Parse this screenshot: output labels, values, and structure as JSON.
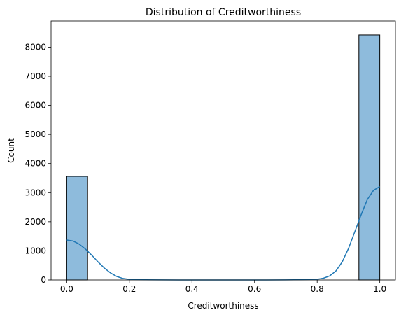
{
  "chart_data": {
    "type": "bar",
    "title": "Distribution of Creditworthiness",
    "xlabel": "Creditworthiness",
    "ylabel": "Count",
    "xlim": [
      -0.05,
      1.05
    ],
    "ylim": [
      0,
      8900
    ],
    "xticks": [
      0.0,
      0.2,
      0.4,
      0.6,
      0.8,
      1.0
    ],
    "xtick_labels": [
      "0.0",
      "0.2",
      "0.4",
      "0.6",
      "0.8",
      "1.0"
    ],
    "yticks": [
      0,
      1000,
      2000,
      3000,
      4000,
      5000,
      6000,
      7000,
      8000
    ],
    "ytick_labels": [
      "0",
      "1000",
      "2000",
      "3000",
      "4000",
      "5000",
      "6000",
      "7000",
      "8000"
    ],
    "bins": [
      {
        "x0": 0.0,
        "x1": 0.0667,
        "count": 3560
      },
      {
        "x0": 0.9333,
        "x1": 1.0,
        "count": 8420
      }
    ],
    "kde": {
      "x": [
        0.0,
        0.02,
        0.04,
        0.06,
        0.08,
        0.1,
        0.12,
        0.14,
        0.16,
        0.18,
        0.2,
        0.25,
        0.3,
        0.4,
        0.5,
        0.6,
        0.7,
        0.75,
        0.8,
        0.82,
        0.84,
        0.86,
        0.88,
        0.9,
        0.92,
        0.94,
        0.96,
        0.98,
        1.0
      ],
      "y": [
        1370,
        1340,
        1230,
        1060,
        850,
        620,
        410,
        240,
        120,
        50,
        20,
        5,
        2,
        0,
        0,
        0,
        2,
        8,
        25,
        60,
        140,
        310,
        620,
        1080,
        1650,
        2230,
        2760,
        3080,
        3210
      ]
    },
    "colors": {
      "bar_fill": "#8ebbdc",
      "bar_edge": "#000000",
      "kde_line": "#1f77b4"
    },
    "grid": false,
    "legend": "none"
  }
}
